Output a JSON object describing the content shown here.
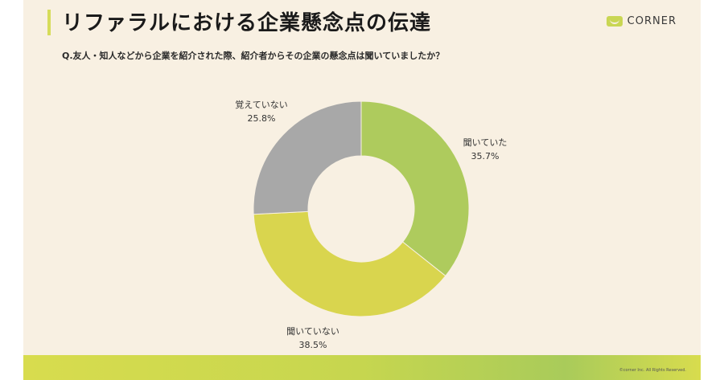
{
  "header": {
    "title": "リファラルにおける企業懸念点の伝達",
    "logo": "CORNER"
  },
  "question": "Q.友人・知人などから企業を紹介された際、紹介者からその企業の懸念点は聞いていましたか？",
  "footer": {
    "copyright": "©corner Inc. All Rights Reserved."
  },
  "chart_data": {
    "type": "pie",
    "donut": true,
    "slices": [
      {
        "label": "聞いていた",
        "value": 35.7,
        "value_text": "35.7%",
        "color": "#aecb5d"
      },
      {
        "label": "聞いていない",
        "value": 38.5,
        "value_text": "38.5%",
        "color": "#d9d54e"
      },
      {
        "label": "覚えていない",
        "value": 25.8,
        "value_text": "25.8%",
        "color": "#a8a8a8"
      }
    ]
  }
}
